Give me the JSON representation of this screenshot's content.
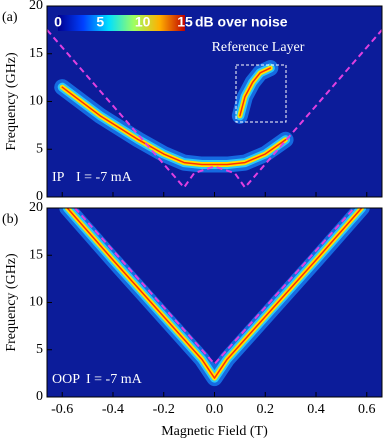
{
  "chart_data": [
    {
      "type": "heatmap",
      "panel_label": "(a)",
      "y_label": "Frequency (GHz)",
      "xlim": [
        -0.66,
        0.66
      ],
      "ylim": [
        0,
        20
      ],
      "yticks": [
        0,
        5,
        10,
        15,
        20
      ],
      "xticks": [
        -0.6,
        -0.4,
        -0.2,
        {
          "value": 0,
          "label": "0.0"
        },
        0.2,
        0.4,
        0.6
      ],
      "show_xtick_labels": false,
      "background": "#0c1c9a",
      "colorbar": {
        "clim": [
          0,
          15
        ],
        "ticks": [
          0,
          5,
          10,
          15
        ],
        "label": "dB over noise"
      },
      "series": [
        {
          "style": "signal",
          "color": "#ffe000",
          "x": [
            -0.6,
            -0.45,
            -0.3,
            -0.2,
            -0.12,
            -0.05,
            0.05,
            0.12,
            0.2,
            0.28
          ],
          "values": [
            11.5,
            8.5,
            6,
            4.5,
            3.6,
            3.4,
            3.4,
            3.6,
            4.5,
            6
          ]
        },
        {
          "style": "signal",
          "color": "#ffe000",
          "x": [
            0.1,
            0.12,
            0.15,
            0.18,
            0.22
          ],
          "values": [
            8.5,
            10.5,
            12,
            13,
            13.5
          ]
        },
        {
          "style": "dashed",
          "color": "#e040e0",
          "x": [
            -0.66,
            -0.12,
            -0.08,
            0,
            0.08,
            0.12,
            0.66
          ],
          "values": [
            17.5,
            1,
            2.5,
            3.2,
            2.5,
            1,
            17.5
          ]
        }
      ],
      "annotations": [
        {
          "text": "Reference Layer"
        },
        {
          "text": "IP"
        },
        {
          "text": "I = -7 mA"
        }
      ]
    },
    {
      "type": "heatmap",
      "panel_label": "(b)",
      "y_label": "Frequency (GHz)",
      "x_label": "Magnetic Field (T)",
      "xlim": [
        -0.66,
        0.66
      ],
      "ylim": [
        0,
        20
      ],
      "yticks": [
        0,
        5,
        10,
        15,
        20
      ],
      "xticks": [
        -0.6,
        -0.4,
        -0.2,
        {
          "value": 0,
          "label": "0.0"
        },
        0.2,
        0.4,
        0.6
      ],
      "show_xtick_labels": true,
      "background": "#0c1c9a",
      "series": [
        {
          "style": "signal",
          "color": "#ffe000",
          "x": [
            -0.58,
            -0.4,
            -0.2,
            -0.05,
            0,
            0.05,
            0.2,
            0.4,
            0.58
          ],
          "values": [
            20,
            14.5,
            8.5,
            4,
            2,
            4,
            8.5,
            14.5,
            20
          ]
        },
        {
          "style": "dashed",
          "color": "#e040e0",
          "x": [
            -0.55,
            0,
            0.55
          ],
          "values": [
            20,
            3.5,
            20
          ]
        }
      ],
      "annotations": [
        {
          "text": "OOP"
        },
        {
          "text": "I = -7 mA"
        }
      ]
    }
  ]
}
